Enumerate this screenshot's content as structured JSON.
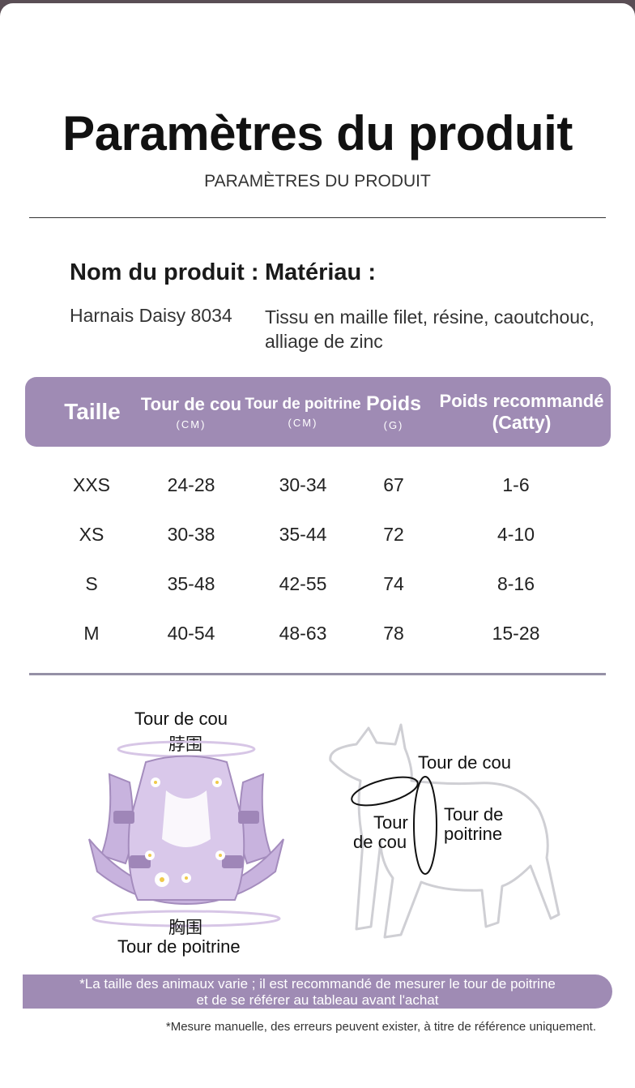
{
  "header": {
    "title": "Paramètres du produit",
    "subtitle": "PARAMÈTRES DU PRODUIT"
  },
  "product": {
    "name_label": "Nom du produit :",
    "name_value": "Harnais Daisy 8034",
    "material_label": "Matériau :",
    "material_value": "Tissu en maille filet, résine, caoutchouc, alliage de zinc"
  },
  "table": {
    "headers": {
      "size": "Taille",
      "neck": "Tour de cou",
      "neck_unit": "(CM)",
      "chest": "Tour de poitrine",
      "chest_unit": "(CM)",
      "weight": "Poids",
      "weight_unit": "(G)",
      "recommended": "Poids recommandé",
      "recommended_unit": "(Catty)"
    },
    "rows": [
      {
        "size": "XXS",
        "neck": "24-28",
        "chest": "30-34",
        "weight": "67",
        "recommended": "1-6"
      },
      {
        "size": "XS",
        "neck": "30-38",
        "chest": "35-44",
        "weight": "72",
        "recommended": "4-10"
      },
      {
        "size": "S",
        "neck": "35-48",
        "chest": "42-55",
        "weight": "74",
        "recommended": "8-16"
      },
      {
        "size": "M",
        "neck": "40-54",
        "chest": "48-63",
        "weight": "78",
        "recommended": "15-28"
      }
    ]
  },
  "diagram": {
    "harness_neck_fr": "Tour de cou",
    "harness_neck_cn": "脖围",
    "harness_chest_cn": "胸围",
    "harness_chest_fr": "Tour de poitrine",
    "dog_neck_top": "Tour de cou",
    "dog_neck_side_1": "Tour",
    "dog_neck_side_2": "de cou",
    "dog_chest_1": "Tour de",
    "dog_chest_2": "poitrine"
  },
  "notes": {
    "banner_line1": "*La taille des animaux varie ; il est recommandé de mesurer le tour de poitrine",
    "banner_line2": "et de se référer au tableau avant l'achat",
    "footnote": "*Mesure manuelle, des erreurs peuvent exister, à titre de référence uniquement."
  },
  "colors": {
    "accent": "#9f8bb4",
    "harness": "#c8b3de"
  }
}
